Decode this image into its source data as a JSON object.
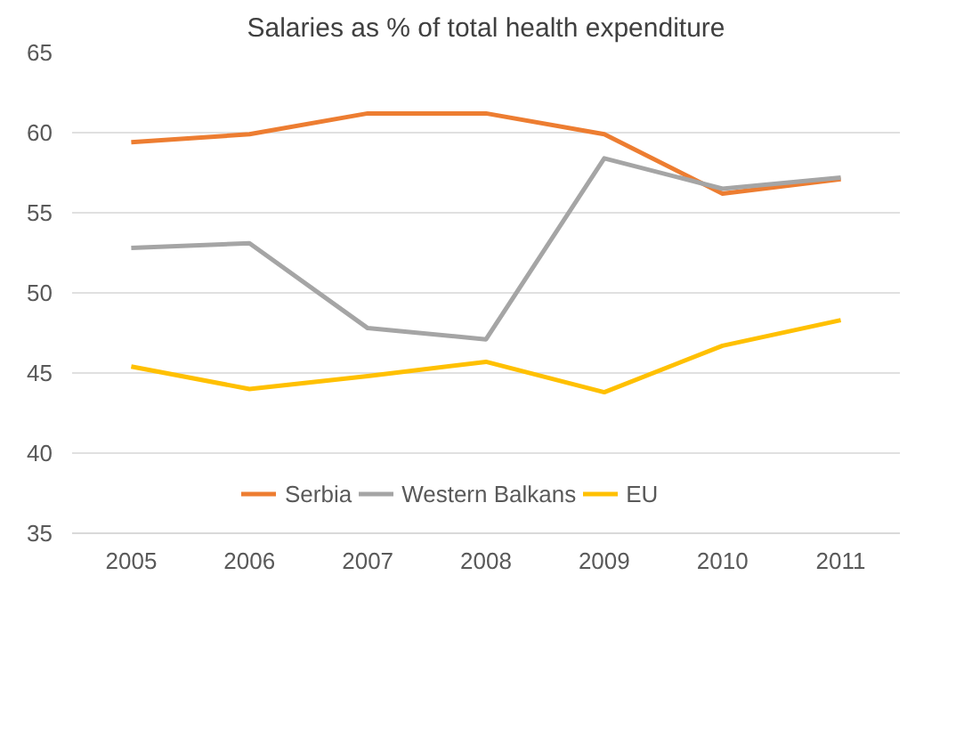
{
  "chart_data": {
    "type": "line",
    "title": "Salaries as % of total health expenditure",
    "categories": [
      "2005",
      "2006",
      "2007",
      "2008",
      "2009",
      "2010",
      "2011"
    ],
    "series": [
      {
        "name": "Serbia",
        "color": "#ed7d31",
        "values": [
          59.4,
          59.9,
          61.2,
          61.2,
          59.9,
          56.2,
          57.1
        ]
      },
      {
        "name": "Western Balkans",
        "color": "#a5a5a5",
        "values": [
          52.8,
          53.1,
          47.8,
          47.1,
          58.4,
          56.5,
          57.2
        ]
      },
      {
        "name": "EU",
        "color": "#ffc000",
        "values": [
          45.4,
          44.0,
          44.8,
          45.7,
          43.8,
          46.7,
          48.3
        ]
      }
    ],
    "ylim": [
      35,
      65
    ],
    "yticks": [
      35,
      40,
      45,
      50,
      55,
      60,
      65
    ],
    "grid": "y",
    "legend": "bottom",
    "marker": "none",
    "line_style": "solid"
  }
}
